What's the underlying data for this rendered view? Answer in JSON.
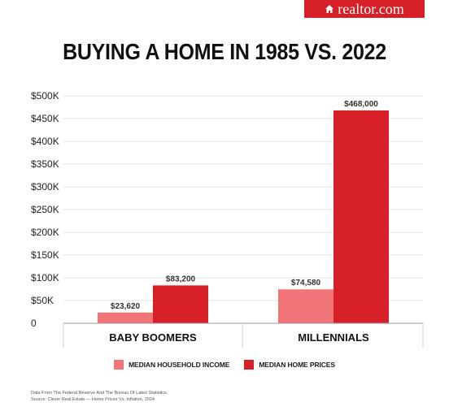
{
  "brand": {
    "name": "realtor.com",
    "color": "#d61f26",
    "icon": "house-icon"
  },
  "title": "BUYING A HOME IN 1985 VS. 2022",
  "chart_data": {
    "type": "bar",
    "title": "BUYING A HOME IN 1985 VS. 2022",
    "categories": [
      "BABY BOOMERS",
      "MILLENNIALS"
    ],
    "series": [
      {
        "name": "MEDIAN HOUSEHOLD INCOME",
        "color": "#f07478",
        "values": [
          23620,
          74580
        ],
        "labels": [
          "$23,620",
          "$74,580"
        ]
      },
      {
        "name": "MEDIAN HOME PRICES",
        "color": "#d61f26",
        "values": [
          83200,
          468000
        ],
        "labels": [
          "$83,200",
          "$468,000"
        ]
      }
    ],
    "ylim": [
      0,
      500000
    ],
    "yticks": [
      0,
      50000,
      100000,
      150000,
      200000,
      250000,
      300000,
      350000,
      400000,
      450000,
      500000
    ],
    "ytick_labels": [
      "0",
      "$50K",
      "$100K",
      "$150K",
      "$200K",
      "$250K",
      "$300K",
      "$350K",
      "$400K",
      "$450K",
      "$500K"
    ],
    "xlabel": "",
    "ylabel": "",
    "grid": true,
    "legend_position": "bottom"
  },
  "legend": {
    "income_label": "MEDIAN HOUSEHOLD INCOME",
    "prices_label": "MEDIAN HOME PRICES"
  },
  "source": {
    "line1": "Data From The Federal Reserve And The Bureau Of Labor Statistics.",
    "line2": "Source: Clever Real Estate — Home Prices Vs. Inflation, 2024"
  }
}
